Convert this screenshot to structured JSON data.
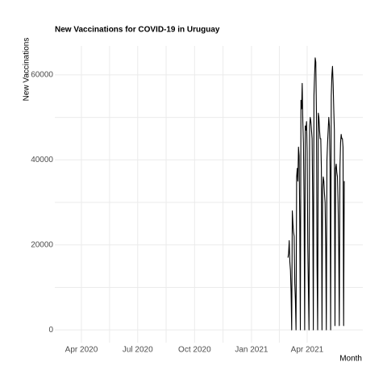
{
  "chart_data": {
    "type": "line",
    "title": "New Vaccinations for COVID-19 in Uruguay",
    "x_label": "Month",
    "y_label": "New Vaccinations",
    "color": "#000000",
    "grid": true,
    "xlim": [
      "2020-02-18",
      "2021-06-30"
    ],
    "xticks": [
      {
        "value": "2020-04-01",
        "label": "Apr 2020"
      },
      {
        "value": "2020-07-01",
        "label": "Jul 2020"
      },
      {
        "value": "2020-10-01",
        "label": "Oct 2020"
      },
      {
        "value": "2021-01-01",
        "label": "Jan 2021"
      },
      {
        "value": "2021-04-01",
        "label": "Apr 2021"
      }
    ],
    "ylim": [
      -3000,
      66800
    ],
    "yticks": [
      0,
      20000,
      40000,
      60000
    ],
    "x": [
      "2021-03-01",
      "2021-03-02",
      "2021-03-03",
      "2021-03-04",
      "2021-03-05",
      "2021-03-06",
      "2021-03-07",
      "2021-03-08",
      "2021-03-09",
      "2021-03-10",
      "2021-03-11",
      "2021-03-12",
      "2021-03-13",
      "2021-03-14",
      "2021-03-15",
      "2021-03-16",
      "2021-03-17",
      "2021-03-18",
      "2021-03-19",
      "2021-03-20",
      "2021-03-21",
      "2021-03-22",
      "2021-03-23",
      "2021-03-24",
      "2021-03-25",
      "2021-03-26",
      "2021-03-27",
      "2021-03-28",
      "2021-03-29",
      "2021-03-30",
      "2021-03-31",
      "2021-04-01",
      "2021-04-02",
      "2021-04-03",
      "2021-04-04",
      "2021-04-05",
      "2021-04-06",
      "2021-04-07",
      "2021-04-08",
      "2021-04-09",
      "2021-04-10",
      "2021-04-11",
      "2021-04-12",
      "2021-04-13",
      "2021-04-14",
      "2021-04-15",
      "2021-04-16",
      "2021-04-17",
      "2021-04-18",
      "2021-04-19",
      "2021-04-20",
      "2021-04-21",
      "2021-04-22",
      "2021-04-23",
      "2021-04-24",
      "2021-04-25",
      "2021-04-26",
      "2021-04-27",
      "2021-04-28",
      "2021-04-29",
      "2021-04-30",
      "2021-05-01",
      "2021-05-02",
      "2021-05-03",
      "2021-05-04",
      "2021-05-05",
      "2021-05-06",
      "2021-05-07",
      "2021-05-08",
      "2021-05-09",
      "2021-05-10",
      "2021-05-11",
      "2021-05-12",
      "2021-05-13",
      "2021-05-14",
      "2021-05-15",
      "2021-05-16",
      "2021-05-17",
      "2021-05-18",
      "2021-05-19",
      "2021-05-20",
      "2021-05-21",
      "2021-05-22",
      "2021-05-23",
      "2021-05-24",
      "2021-05-25",
      "2021-05-26",
      "2021-05-27",
      "2021-05-28",
      "2021-05-29",
      "2021-05-30",
      "2021-05-31"
    ],
    "values": [
      17000,
      18000,
      21000,
      16000,
      14000,
      9000,
      0,
      28000,
      25000,
      23000,
      22000,
      11000,
      7000,
      0,
      36000,
      38000,
      35000,
      43000,
      41000,
      26000,
      0,
      54000,
      52000,
      58000,
      49000,
      44000,
      30000,
      0,
      48000,
      47000,
      49000,
      42000,
      20000,
      10000,
      0,
      48000,
      50000,
      49000,
      47000,
      45000,
      30000,
      0,
      55000,
      60000,
      64000,
      63000,
      51000,
      15000,
      0,
      51000,
      50000,
      47000,
      45000,
      45000,
      38000,
      0,
      33000,
      36000,
      35000,
      32000,
      30000,
      20000,
      0,
      40000,
      44000,
      47000,
      50000,
      48000,
      38000,
      0,
      55000,
      60000,
      62000,
      58000,
      52000,
      47000,
      1000,
      38000,
      39000,
      37000,
      36000,
      30000,
      20000,
      1000,
      38000,
      44000,
      46000,
      45000,
      45000,
      43000,
      1000,
      35000
    ]
  }
}
